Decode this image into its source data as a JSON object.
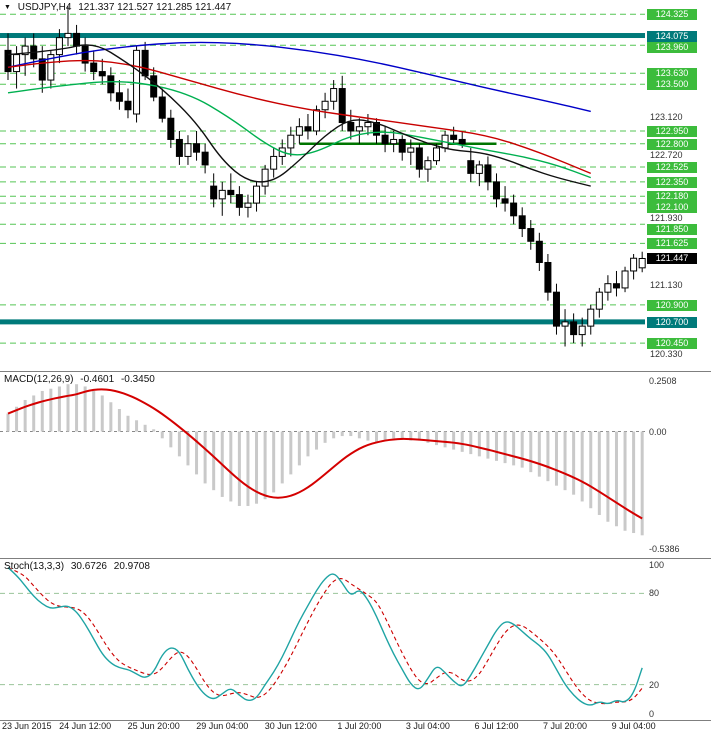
{
  "header": {
    "symbol_period": "USDJPY,H4",
    "ohlc": "121.337 121.527 121.285 121.447"
  },
  "colors": {
    "level_badge": "#3cbc3c",
    "band": "#007a7a",
    "current_badge": "#000000",
    "grid_dash": "#55c555",
    "segment_green": "#007500",
    "candle_up": "#ffffff",
    "candle_down": "#000000",
    "macd_hist": "#c9c9c9",
    "macd_signal": "#d40000",
    "stoch_k": "#1fa4a4",
    "stoch_d": "#cc0000",
    "stoch_grid": "#99c499"
  },
  "time_axis": [
    {
      "text": "23 Jun 2015",
      "bar": 0
    },
    {
      "text": "24 Jun 12:00",
      "bar": 9
    },
    {
      "text": "25 Jun 20:00",
      "bar": 17
    },
    {
      "text": "29 Jun 04:00",
      "bar": 25
    },
    {
      "text": "30 Jun 12:00",
      "bar": 33
    },
    {
      "text": "1 Jul 20:00",
      "bar": 41
    },
    {
      "text": "3 Jul 04:00",
      "bar": 49
    },
    {
      "text": "6 Jul 12:00",
      "bar": 57
    },
    {
      "text": "7 Jul 20:00",
      "bar": 65
    },
    {
      "text": "9 Jul 04:00",
      "bar": 73
    }
  ],
  "chart_data": [
    {
      "type": "candlestick",
      "title": "USDJPY,H4",
      "timeframe": "H4",
      "price_range": [
        120.18,
        124.47
      ],
      "current_price": 121.447,
      "levels": [
        {
          "text": "124.325",
          "price": 124.325,
          "style": "level"
        },
        {
          "text": "124.075",
          "price": 124.075,
          "style": "band"
        },
        {
          "text": "123.960",
          "price": 123.96,
          "style": "level"
        },
        {
          "text": "123.630",
          "price": 123.63,
          "style": "level"
        },
        {
          "text": "123.500",
          "price": 123.5,
          "style": "level"
        },
        {
          "text": "123.120",
          "price": 123.12,
          "style": "axis"
        },
        {
          "text": "122.950",
          "price": 122.95,
          "style": "level"
        },
        {
          "text": "122.800",
          "price": 122.8,
          "style": "level"
        },
        {
          "text": "122.720",
          "price": 122.72,
          "style": "axis"
        },
        {
          "text": "122.525",
          "price": 122.525,
          "style": "level"
        },
        {
          "text": "122.350",
          "price": 122.35,
          "style": "level"
        },
        {
          "text": "122.180",
          "price": 122.18,
          "style": "level"
        },
        {
          "text": "122.100",
          "price": 122.1,
          "style": "level"
        },
        {
          "text": "121.930",
          "price": 121.93,
          "style": "axis"
        },
        {
          "text": "121.850",
          "price": 121.85,
          "style": "level"
        },
        {
          "text": "121.625",
          "price": 121.625,
          "style": "level"
        },
        {
          "text": "121.447",
          "price": 121.447,
          "style": "current"
        },
        {
          "text": "121.130",
          "price": 121.13,
          "style": "axis"
        },
        {
          "text": "120.900",
          "price": 120.9,
          "style": "level"
        },
        {
          "text": "120.700",
          "price": 120.7,
          "style": "band"
        },
        {
          "text": "120.450",
          "price": 120.45,
          "style": "level"
        },
        {
          "text": "120.330",
          "price": 120.33,
          "style": "axis"
        }
      ],
      "segment": {
        "price": 122.8,
        "from_bar": 34,
        "to_bar": 57
      },
      "candles": [
        [
          123.9,
          124.1,
          123.55,
          123.65
        ],
        [
          123.65,
          123.95,
          123.45,
          123.85
        ],
        [
          123.85,
          124.05,
          123.6,
          123.95
        ],
        [
          123.95,
          124.1,
          123.7,
          123.8
        ],
        [
          123.8,
          123.95,
          123.4,
          123.55
        ],
        [
          123.55,
          123.9,
          123.45,
          123.85
        ],
        [
          123.85,
          124.15,
          123.75,
          124.05
        ],
        [
          124.05,
          124.42,
          123.95,
          124.1
        ],
        [
          124.1,
          124.2,
          123.85,
          123.95
        ],
        [
          123.95,
          124.05,
          123.65,
          123.75
        ],
        [
          123.75,
          123.9,
          123.55,
          123.65
        ],
        [
          123.65,
          123.8,
          123.5,
          123.6
        ],
        [
          123.6,
          123.7,
          123.3,
          123.4
        ],
        [
          123.4,
          123.55,
          123.2,
          123.3
        ],
        [
          123.3,
          123.45,
          123.1,
          123.2
        ],
        [
          123.15,
          123.95,
          123.05,
          123.9
        ],
        [
          123.9,
          124.0,
          123.55,
          123.6
        ],
        [
          123.6,
          123.7,
          123.3,
          123.35
        ],
        [
          123.35,
          123.45,
          123.05,
          123.1
        ],
        [
          123.1,
          123.2,
          122.75,
          122.85
        ],
        [
          122.85,
          122.95,
          122.55,
          122.65
        ],
        [
          122.65,
          122.9,
          122.55,
          122.8
        ],
        [
          122.8,
          122.95,
          122.6,
          122.7
        ],
        [
          122.7,
          122.8,
          122.45,
          122.55
        ],
        [
          122.3,
          122.45,
          122.05,
          122.15
        ],
        [
          122.15,
          122.35,
          121.95,
          122.25
        ],
        [
          122.25,
          122.45,
          122.1,
          122.2
        ],
        [
          122.2,
          122.3,
          121.95,
          122.05
        ],
        [
          122.05,
          122.2,
          121.93,
          122.1
        ],
        [
          122.1,
          122.35,
          122.0,
          122.3
        ],
        [
          122.3,
          122.55,
          122.2,
          122.5
        ],
        [
          122.5,
          122.75,
          122.4,
          122.65
        ],
        [
          122.65,
          122.85,
          122.55,
          122.75
        ],
        [
          122.75,
          123.0,
          122.65,
          122.9
        ],
        [
          122.9,
          123.1,
          122.8,
          123.0
        ],
        [
          123.0,
          123.15,
          122.85,
          122.95
        ],
        [
          122.95,
          123.25,
          122.9,
          123.2
        ],
        [
          123.2,
          123.4,
          123.1,
          123.3
        ],
        [
          123.3,
          123.55,
          123.2,
          123.45
        ],
        [
          123.45,
          123.6,
          122.95,
          123.05
        ],
        [
          123.05,
          123.2,
          122.85,
          122.95
        ],
        [
          122.95,
          123.1,
          122.8,
          123.0
        ],
        [
          123.0,
          123.15,
          122.9,
          123.05
        ],
        [
          123.05,
          123.1,
          122.8,
          122.9
        ],
        [
          122.9,
          123.0,
          122.7,
          122.8
        ],
        [
          122.8,
          122.95,
          122.7,
          122.85
        ],
        [
          122.85,
          122.9,
          122.6,
          122.7
        ],
        [
          122.7,
          122.85,
          122.55,
          122.75
        ],
        [
          122.75,
          122.8,
          122.4,
          122.5
        ],
        [
          122.5,
          122.65,
          122.35,
          122.6
        ],
        [
          122.6,
          122.8,
          122.55,
          122.75
        ],
        [
          122.75,
          122.95,
          122.7,
          122.9
        ],
        [
          122.9,
          123.0,
          122.8,
          122.85
        ],
        [
          122.85,
          122.95,
          122.75,
          122.8
        ],
        [
          122.6,
          122.75,
          122.35,
          122.45
        ],
        [
          122.45,
          122.6,
          122.3,
          122.55
        ],
        [
          122.55,
          122.65,
          122.25,
          122.35
        ],
        [
          122.35,
          122.45,
          122.05,
          122.15
        ],
        [
          122.15,
          122.3,
          122.0,
          122.1
        ],
        [
          122.1,
          122.2,
          121.85,
          121.95
        ],
        [
          121.95,
          122.05,
          121.7,
          121.8
        ],
        [
          121.8,
          121.9,
          121.55,
          121.65
        ],
        [
          121.65,
          121.75,
          121.3,
          121.4
        ],
        [
          121.4,
          121.5,
          120.95,
          121.05
        ],
        [
          121.05,
          121.15,
          120.55,
          120.65
        ],
        [
          120.65,
          120.85,
          120.41,
          120.7
        ],
        [
          120.7,
          120.8,
          120.45,
          120.55
        ],
        [
          120.55,
          120.75,
          120.41,
          120.65
        ],
        [
          120.65,
          120.9,
          120.55,
          120.85
        ],
        [
          120.85,
          121.1,
          120.75,
          121.05
        ],
        [
          121.05,
          121.25,
          120.95,
          121.15
        ],
        [
          121.15,
          121.3,
          121.0,
          121.1
        ],
        [
          121.1,
          121.35,
          121.05,
          121.3
        ],
        [
          121.3,
          121.5,
          121.2,
          121.45
        ],
        [
          121.337,
          121.527,
          121.285,
          121.447
        ]
      ],
      "ma_lines": [
        {
          "name": "ma-blue",
          "color": "#0000c8",
          "points": [
            [
              0,
              123.7
            ],
            [
              7,
              123.85
            ],
            [
              14,
              123.95
            ],
            [
              21,
              124.0
            ],
            [
              28,
              123.98
            ],
            [
              35,
              123.9
            ],
            [
              42,
              123.78
            ],
            [
              49,
              123.62
            ],
            [
              56,
              123.45
            ],
            [
              63,
              123.3
            ],
            [
              68,
              123.18
            ]
          ]
        },
        {
          "name": "ma-red",
          "color": "#c80000",
          "points": [
            [
              0,
              123.7
            ],
            [
              7,
              123.8
            ],
            [
              14,
              123.75
            ],
            [
              21,
              123.55
            ],
            [
              28,
              123.35
            ],
            [
              35,
              123.2
            ],
            [
              42,
              123.1
            ],
            [
              49,
              123.0
            ],
            [
              56,
              122.9
            ],
            [
              62,
              122.7
            ],
            [
              68,
              122.45
            ]
          ]
        },
        {
          "name": "ma-green",
          "color": "#00b050",
          "points": [
            [
              0,
              123.4
            ],
            [
              7,
              123.5
            ],
            [
              14,
              123.55
            ],
            [
              21,
              123.4
            ],
            [
              26,
              123.1
            ],
            [
              30,
              122.8
            ],
            [
              33,
              122.65
            ],
            [
              36,
              122.7
            ],
            [
              40,
              122.9
            ],
            [
              44,
              122.95
            ],
            [
              48,
              122.88
            ],
            [
              52,
              122.8
            ],
            [
              56,
              122.72
            ],
            [
              60,
              122.65
            ],
            [
              64,
              122.55
            ],
            [
              68,
              122.4
            ]
          ]
        },
        {
          "name": "ma-black",
          "color": "#101010",
          "points": [
            [
              0,
              123.85
            ],
            [
              6,
              123.9
            ],
            [
              10,
              124.0
            ],
            [
              14,
              123.75
            ],
            [
              18,
              123.45
            ],
            [
              22,
              123.05
            ],
            [
              25,
              122.6
            ],
            [
              28,
              122.35
            ],
            [
              31,
              122.35
            ],
            [
              34,
              122.6
            ],
            [
              37,
              122.9
            ],
            [
              40,
              123.1
            ],
            [
              43,
              123.05
            ],
            [
              46,
              122.92
            ],
            [
              49,
              122.8
            ],
            [
              52,
              122.72
            ],
            [
              55,
              122.7
            ],
            [
              58,
              122.62
            ],
            [
              61,
              122.5
            ],
            [
              64,
              122.4
            ],
            [
              68,
              122.3
            ]
          ]
        }
      ]
    },
    {
      "type": "bar",
      "name": "MACD",
      "label": "MACD(12,26,9)",
      "value_main": "-0.4601",
      "value_signal": "-0.3450",
      "scale": {
        "max": 0.2508,
        "min": -0.5386
      },
      "axis_labels": [
        "0.2508",
        "0.00",
        "-0.5386"
      ],
      "values": [
        0.08,
        0.11,
        0.14,
        0.16,
        0.18,
        0.19,
        0.2,
        0.21,
        0.21,
        0.2,
        0.18,
        0.16,
        0.13,
        0.1,
        0.07,
        0.05,
        0.03,
        0.01,
        -0.03,
        -0.07,
        -0.11,
        -0.15,
        -0.19,
        -0.23,
        -0.26,
        -0.29,
        -0.31,
        -0.33,
        -0.33,
        -0.32,
        -0.3,
        -0.27,
        -0.23,
        -0.19,
        -0.15,
        -0.11,
        -0.08,
        -0.05,
        -0.03,
        -0.02,
        -0.02,
        -0.03,
        -0.04,
        -0.05,
        -0.04,
        -0.03,
        -0.03,
        -0.04,
        -0.04,
        -0.05,
        -0.06,
        -0.07,
        -0.08,
        -0.09,
        -0.1,
        -0.11,
        -0.12,
        -0.13,
        -0.14,
        -0.15,
        -0.16,
        -0.18,
        -0.2,
        -0.22,
        -0.24,
        -0.26,
        -0.28,
        -0.31,
        -0.34,
        -0.37,
        -0.4,
        -0.42,
        -0.44,
        -0.45,
        -0.4601
      ]
    },
    {
      "type": "line",
      "name": "Stochastic",
      "label": "Stoch(13,3,3)",
      "value_k": "30.6726",
      "value_d": "20.9708",
      "scale": {
        "max": 100,
        "min": 0
      },
      "guide_levels": [
        80,
        20
      ],
      "axis_labels": [
        "100",
        "80",
        "20",
        "0"
      ],
      "k_values": [
        97,
        92,
        85,
        78,
        73,
        70,
        71,
        72,
        68,
        60,
        50,
        40,
        34,
        31,
        30,
        27,
        24,
        28,
        40,
        45,
        42,
        30,
        20,
        13,
        10,
        14,
        18,
        13,
        9,
        11,
        20,
        28,
        38,
        50,
        62,
        72,
        82,
        90,
        94,
        87,
        78,
        83,
        76,
        65,
        52,
        40,
        30,
        20,
        16,
        24,
        33,
        28,
        22,
        18,
        26,
        36,
        46,
        56,
        62,
        60,
        55,
        50,
        46,
        40,
        30,
        20,
        13,
        8,
        6,
        9,
        7,
        10,
        8,
        14,
        31
      ]
    }
  ]
}
